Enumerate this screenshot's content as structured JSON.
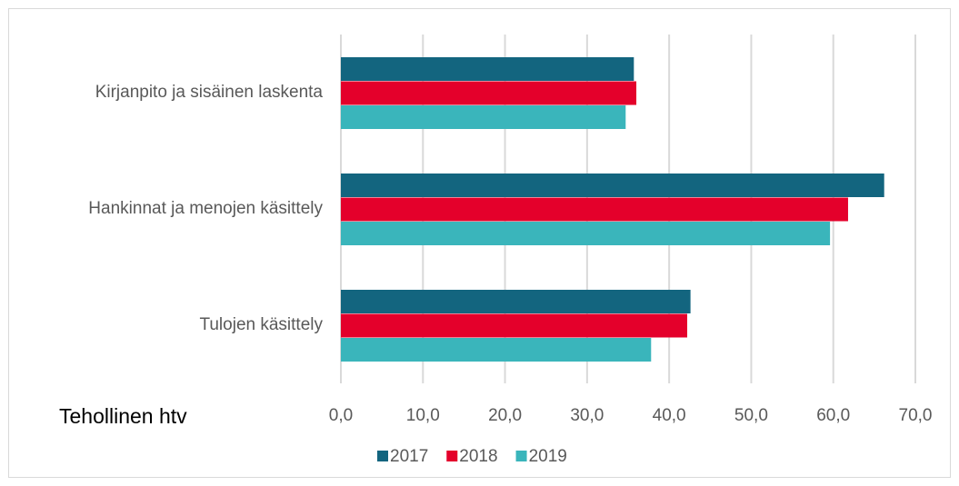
{
  "chart_data": {
    "type": "hbar",
    "x_label": "Tehollinen htv",
    "categories": [
      "Kirjanpito ja sisäinen laskenta",
      "Hankinnat ja menojen käsittely",
      "Tulojen käsittely"
    ],
    "series": [
      {
        "name": "2017",
        "color": "#13657f",
        "values": [
          35.7,
          66.2,
          42.6
        ]
      },
      {
        "name": "2018",
        "color": "#e4002b",
        "values": [
          36.0,
          61.8,
          42.2
        ]
      },
      {
        "name": "2019",
        "color": "#3ab5bb",
        "values": [
          34.7,
          59.6,
          37.8
        ]
      }
    ],
    "xlim": [
      0,
      70
    ],
    "xticks": [
      {
        "value": 0,
        "label": "0,0"
      },
      {
        "value": 10,
        "label": "10,0"
      },
      {
        "value": 20,
        "label": "20,0"
      },
      {
        "value": 30,
        "label": "30,0"
      },
      {
        "value": 40,
        "label": "40,0"
      },
      {
        "value": 50,
        "label": "50,0"
      },
      {
        "value": 60,
        "label": "60,0"
      },
      {
        "value": 70,
        "label": "70,0"
      }
    ],
    "grid": true,
    "legend": "bottom"
  }
}
